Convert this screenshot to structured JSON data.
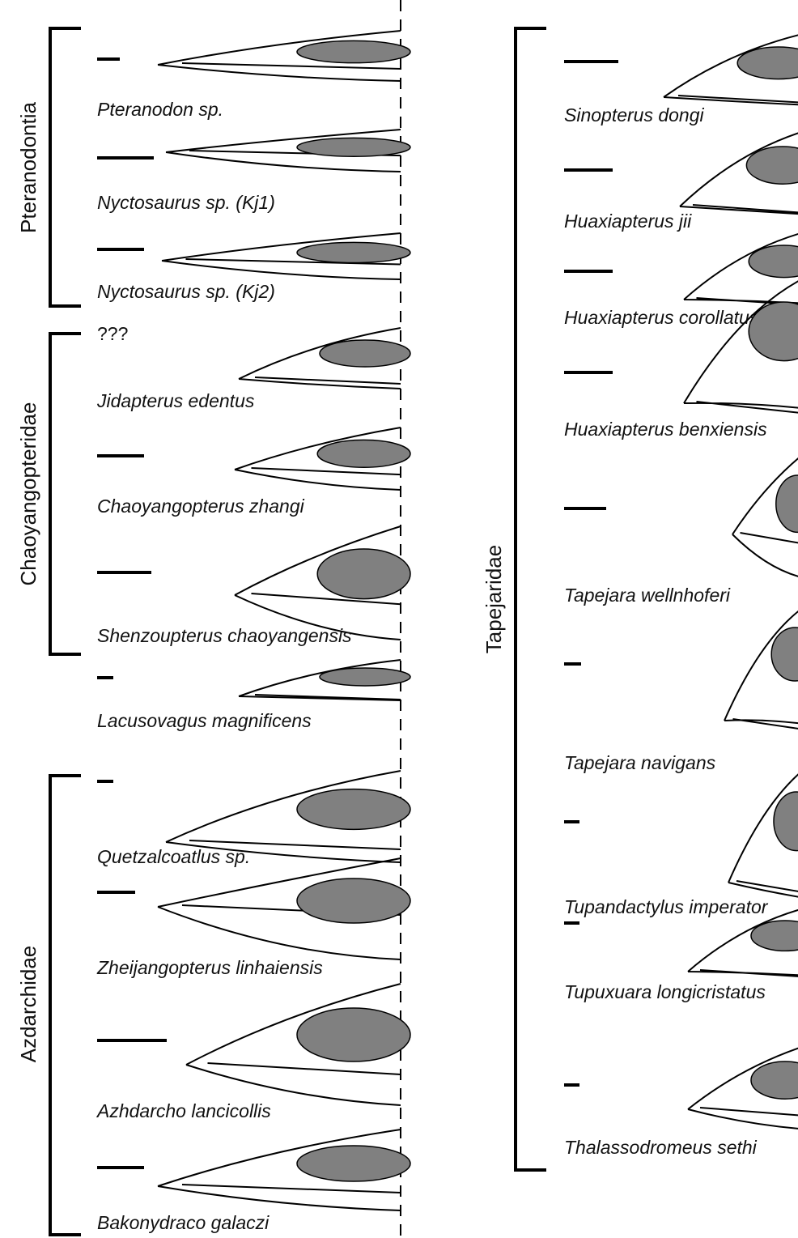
{
  "groups": [
    "Pteranodontia",
    "Chaoyangopteridae",
    "Azdarchidae",
    "Tapejaridae"
  ],
  "unknown_scale_label": "???",
  "left_taxa": [
    "Pteranodon sp.",
    "Nyctosaurus sp. (Kj1)",
    "Nyctosaurus sp. (Kj2)",
    "Jidapterus edentus",
    "Chaoyangopterus zhangi",
    "Shenzoupterus chaoyangensis",
    "Lacusovagus magnificens",
    "Quetzalcoatlus sp.",
    "Zheijangopterus linhaiensis",
    "Azhdarcho lancicollis",
    "Bakonydraco galaczi"
  ],
  "right_taxa": [
    "Sinopterus dongi",
    "Huaxiapterus jii",
    "Huaxiapterus corollatus",
    "Huaxiapterus benxiensis",
    "Tapejara wellnhoferi",
    "Tapejara navigans",
    "Tupandactylus imperator",
    "Tupuxuara longicristatus",
    "Thalassodromeus sethi"
  ]
}
